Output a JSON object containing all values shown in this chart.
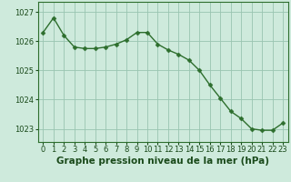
{
  "x": [
    0,
    1,
    2,
    3,
    4,
    5,
    6,
    7,
    8,
    9,
    10,
    11,
    12,
    13,
    14,
    15,
    16,
    17,
    18,
    19,
    20,
    21,
    22,
    23
  ],
  "y": [
    1026.3,
    1026.8,
    1026.2,
    1025.8,
    1025.75,
    1025.75,
    1025.8,
    1025.9,
    1026.05,
    1026.3,
    1026.3,
    1025.9,
    1025.7,
    1025.55,
    1025.35,
    1025.0,
    1024.5,
    1024.05,
    1023.6,
    1023.35,
    1023.0,
    1022.95,
    1022.95,
    1023.2
  ],
  "line_color": "#2d6e2d",
  "marker": "D",
  "markersize": 2.5,
  "linewidth": 1.0,
  "bg_color": "#ceeadc",
  "grid_color": "#99c4b0",
  "xlabel": "Graphe pression niveau de la mer (hPa)",
  "xlabel_fontsize": 7.5,
  "xlabel_color": "#1a4a1a",
  "ytick_labels": [
    "1023",
    "1024",
    "1025",
    "1026",
    "1027"
  ],
  "ytick_values": [
    1023,
    1024,
    1025,
    1026,
    1027
  ],
  "ylim": [
    1022.55,
    1027.35
  ],
  "xlim": [
    -0.5,
    23.5
  ],
  "xtick_labels": [
    "0",
    "1",
    "2",
    "3",
    "4",
    "5",
    "6",
    "7",
    "8",
    "9",
    "10",
    "11",
    "12",
    "13",
    "14",
    "15",
    "16",
    "17",
    "18",
    "19",
    "20",
    "21",
    "22",
    "23"
  ],
  "tick_fontsize": 6.0,
  "tick_color": "#1a4a1a",
  "spine_color": "#2d6e2d"
}
